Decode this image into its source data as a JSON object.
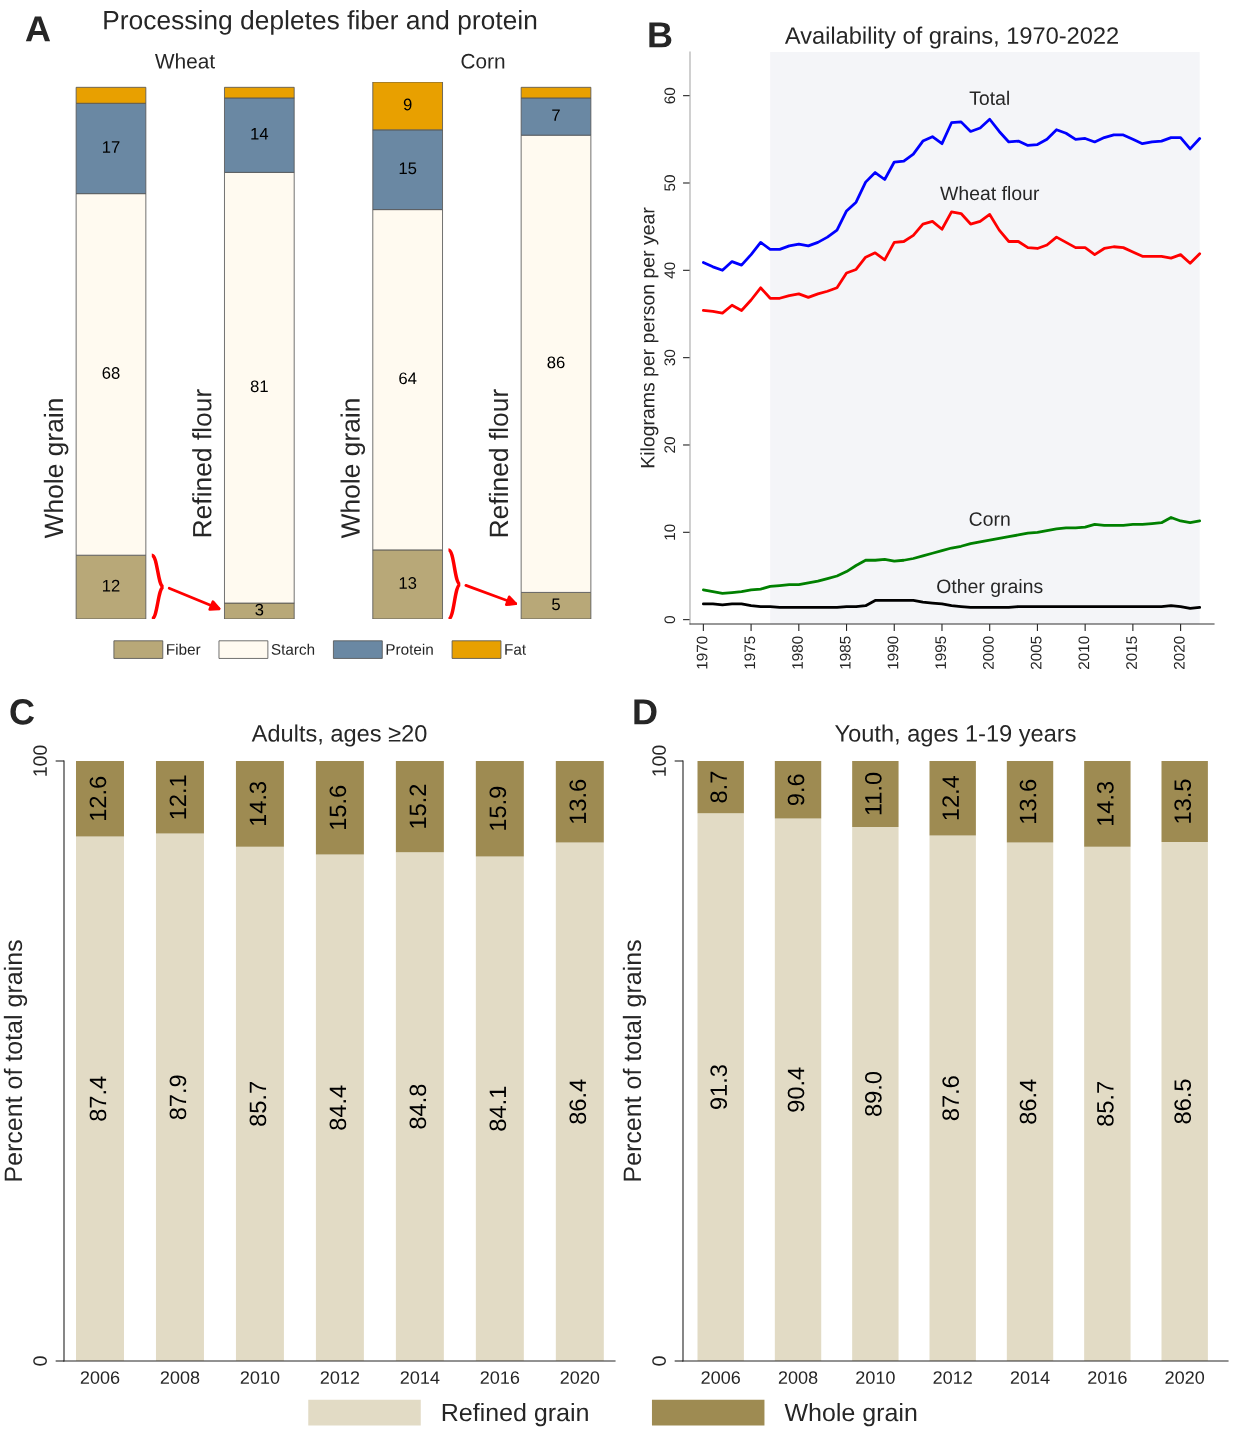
{
  "chart_data": [
    {
      "type": "bar",
      "title": "Processing depletes fiber and protein",
      "stacked": true,
      "legend": "bottom",
      "categories": [
        "Whole grain",
        "Refined flour",
        "Whole grain",
        "Refined flour"
      ],
      "annotations": [
        "A",
        "Wheat",
        "Corn"
      ],
      "series": [
        {
          "name": "Fiber",
          "color": "#b8a878",
          "values": [
            12,
            3,
            13,
            5
          ],
          "value_labels": [
            "12",
            "3",
            "13",
            "5"
          ]
        },
        {
          "name": "Starch",
          "color": "#fffaf0",
          "values": [
            68,
            81,
            64,
            86
          ],
          "value_labels": [
            "68",
            "81",
            "64",
            "86"
          ]
        },
        {
          "name": "Protein",
          "color": "#6a88a3",
          "values": [
            17,
            14,
            15,
            7
          ],
          "value_labels": [
            "17",
            "14",
            "15",
            "7"
          ]
        },
        {
          "name": "Fat",
          "color": "#e8a000",
          "values": [
            3,
            2,
            9,
            2
          ],
          "value_labels": [
            null,
            null,
            "9",
            null
          ]
        }
      ]
    },
    {
      "type": "line",
      "title": "Availability of grains, 1970-2022",
      "ylabel": "Kilograms per person per year",
      "annotations": [
        "B"
      ],
      "xlim": [
        1968.6,
        2023.5
      ],
      "ylim": [
        -0.5,
        65
      ],
      "xticks": [
        1970,
        1975,
        1980,
        1985,
        1990,
        1995,
        2000,
        2005,
        2010,
        2015,
        2020
      ],
      "yticks": [
        0,
        10,
        20,
        30,
        40,
        50,
        60
      ],
      "bands": [
        {
          "axis": "x",
          "from": 1977,
          "to": 2022,
          "color": "#f4f5f8"
        }
      ],
      "x": [
        1970,
        1971,
        1972,
        1973,
        1974,
        1975,
        1976,
        1977,
        1978,
        1979,
        1980,
        1981,
        1982,
        1983,
        1984,
        1985,
        1986,
        1987,
        1988,
        1989,
        1990,
        1991,
        1992,
        1993,
        1994,
        1995,
        1996,
        1997,
        1998,
        1999,
        2000,
        2001,
        2002,
        2003,
        2004,
        2005,
        2006,
        2007,
        2008,
        2009,
        2010,
        2011,
        2012,
        2013,
        2014,
        2015,
        2016,
        2017,
        2018,
        2019,
        2020,
        2021,
        2022
      ],
      "series": [
        {
          "name": "Total",
          "color": "#0000ff",
          "values": [
            40.9,
            40.4,
            40.0,
            41.0,
            40.6,
            41.8,
            43.2,
            42.4,
            42.4,
            42.8,
            43.0,
            42.8,
            43.2,
            43.8,
            44.6,
            46.8,
            47.8,
            50.1,
            51.2,
            50.4,
            52.4,
            52.5,
            53.3,
            54.8,
            55.3,
            54.5,
            56.9,
            57.0,
            55.9,
            56.3,
            57.3,
            55.9,
            54.7,
            54.8,
            54.3,
            54.4,
            55.0,
            56.1,
            55.7,
            55.0,
            55.1,
            54.7,
            55.2,
            55.5,
            55.5,
            55.0,
            54.5,
            54.7,
            54.8,
            55.2,
            55.2,
            53.9,
            55.1
          ]
        },
        {
          "name": "Wheat flour",
          "color": "#ff0000",
          "values": [
            35.4,
            35.3,
            35.1,
            36.0,
            35.4,
            36.6,
            38.0,
            36.8,
            36.8,
            37.1,
            37.3,
            36.9,
            37.3,
            37.6,
            38.0,
            39.7,
            40.1,
            41.5,
            42.0,
            41.2,
            43.2,
            43.3,
            44.0,
            45.3,
            45.6,
            44.7,
            46.7,
            46.5,
            45.3,
            45.6,
            46.4,
            44.6,
            43.3,
            43.3,
            42.6,
            42.5,
            42.9,
            43.8,
            43.2,
            42.6,
            42.6,
            41.8,
            42.5,
            42.7,
            42.6,
            42.1,
            41.6,
            41.6,
            41.6,
            41.4,
            41.8,
            40.8,
            41.9
          ]
        },
        {
          "name": "Corn",
          "color": "#008000",
          "values": [
            3.4,
            3.2,
            3.0,
            3.1,
            3.2,
            3.4,
            3.5,
            3.8,
            3.9,
            4.0,
            4.0,
            4.2,
            4.4,
            4.7,
            5.0,
            5.5,
            6.2,
            6.8,
            6.8,
            6.9,
            6.7,
            6.8,
            7.0,
            7.3,
            7.6,
            7.9,
            8.2,
            8.4,
            8.7,
            8.9,
            9.1,
            9.3,
            9.5,
            9.7,
            9.9,
            10.0,
            10.2,
            10.4,
            10.5,
            10.5,
            10.6,
            10.9,
            10.8,
            10.8,
            10.8,
            10.9,
            10.9,
            11.0,
            11.1,
            11.7,
            11.3,
            11.1,
            11.3
          ]
        },
        {
          "name": "Other grains",
          "color": "#000000",
          "values": [
            1.8,
            1.8,
            1.7,
            1.8,
            1.8,
            1.6,
            1.5,
            1.5,
            1.4,
            1.4,
            1.4,
            1.4,
            1.4,
            1.4,
            1.4,
            1.5,
            1.5,
            1.6,
            2.2,
            2.2,
            2.2,
            2.2,
            2.2,
            2.0,
            1.9,
            1.8,
            1.6,
            1.5,
            1.4,
            1.4,
            1.4,
            1.4,
            1.4,
            1.5,
            1.5,
            1.5,
            1.5,
            1.5,
            1.5,
            1.5,
            1.5,
            1.5,
            1.5,
            1.5,
            1.5,
            1.5,
            1.5,
            1.5,
            1.5,
            1.6,
            1.5,
            1.3,
            1.4
          ]
        }
      ]
    },
    {
      "type": "bar",
      "title": "Adults, ages ≥20",
      "ylabel": "Percent of total grains",
      "stacked": true,
      "legend": "bottom",
      "annotations": [
        "C"
      ],
      "ylim": [
        0,
        100
      ],
      "yticks": [
        0,
        100
      ],
      "categories": [
        "2006",
        "2008",
        "2010",
        "2012",
        "2014",
        "2016",
        "2020"
      ],
      "series": [
        {
          "name": "Refined grain",
          "color": "#e2dbc5",
          "values": [
            87.4,
            87.9,
            85.7,
            84.4,
            84.8,
            84.1,
            86.4
          ],
          "value_labels": [
            "87.4",
            "87.9",
            "85.7",
            "84.4",
            "84.8",
            "84.1",
            "86.4"
          ]
        },
        {
          "name": "Whole grain",
          "color": "#9e8b52",
          "values": [
            12.6,
            12.1,
            14.3,
            15.6,
            15.2,
            15.9,
            13.6
          ],
          "value_labels": [
            "12.6",
            "12.1",
            "14.3",
            "15.6",
            "15.2",
            "15.9",
            "13.6"
          ]
        }
      ]
    },
    {
      "type": "bar",
      "title": "Youth, ages 1-19 years",
      "ylabel": "Percent of total grains",
      "stacked": true,
      "annotations": [
        "D"
      ],
      "ylim": [
        0,
        100
      ],
      "yticks": [
        0,
        100
      ],
      "categories": [
        "2006",
        "2008",
        "2010",
        "2012",
        "2014",
        "2016",
        "2020"
      ],
      "series": [
        {
          "color": "#e2dbc5",
          "values": [
            91.3,
            90.4,
            89.0,
            87.6,
            86.4,
            85.7,
            86.5
          ],
          "value_labels": [
            "91.3",
            "90.4",
            "89.0",
            "87.6",
            "86.4",
            "85.7",
            "86.5"
          ]
        },
        {
          "color": "#9e8b52",
          "values": [
            8.7,
            9.6,
            11.0,
            12.4,
            13.6,
            14.3,
            13.5
          ],
          "value_labels": [
            "8.7",
            "9.6",
            "11.0",
            "12.4",
            "13.6",
            "14.3",
            "13.5"
          ]
        }
      ]
    }
  ]
}
